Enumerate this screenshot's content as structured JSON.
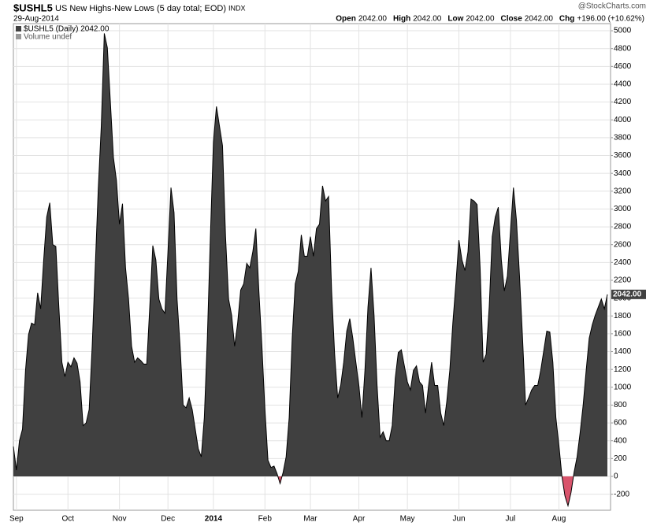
{
  "header": {
    "symbol": "$USHL5",
    "name": "US New Highs-New Lows (5 day total; EOD)",
    "exchange": "INDX",
    "date": "29-Aug-2014",
    "credit": "@StockCharts.com",
    "quote": [
      {
        "label": "Open",
        "value": "2042.00"
      },
      {
        "label": "High",
        "value": "2042.00"
      },
      {
        "label": "Low",
        "value": "2042.00"
      },
      {
        "label": "Close",
        "value": "2042.00"
      },
      {
        "label": "Chg",
        "value": "+196.00 (+10.62%)"
      }
    ],
    "legend_volume": "Volume undef"
  },
  "chart_data": {
    "type": "area",
    "categories": [
      null,
      "Sep",
      null,
      null,
      null,
      null,
      null,
      null,
      null,
      null,
      null,
      null,
      null,
      null,
      null,
      null,
      null,
      null,
      "Oct",
      null,
      null,
      null,
      null,
      null,
      null,
      null,
      null,
      null,
      null,
      null,
      null,
      null,
      null,
      null,
      null,
      "Nov",
      null,
      null,
      null,
      null,
      null,
      null,
      null,
      null,
      null,
      null,
      null,
      null,
      null,
      null,
      null,
      "Dec",
      null,
      null,
      null,
      null,
      null,
      null,
      null,
      null,
      null,
      null,
      null,
      null,
      null,
      null,
      "2014",
      null,
      null,
      null,
      null,
      null,
      null,
      null,
      null,
      null,
      null,
      null,
      null,
      null,
      null,
      null,
      null,
      "Feb",
      null,
      null,
      null,
      null,
      null,
      null,
      null,
      null,
      null,
      null,
      null,
      null,
      null,
      null,
      "Mar",
      null,
      null,
      null,
      null,
      null,
      null,
      null,
      null,
      null,
      null,
      null,
      null,
      null,
      null,
      null,
      "Apr",
      null,
      null,
      null,
      null,
      null,
      null,
      null,
      null,
      null,
      null,
      null,
      null,
      null,
      null,
      null,
      "May",
      null,
      null,
      null,
      null,
      null,
      null,
      null,
      null,
      null,
      null,
      null,
      null,
      null,
      null,
      null,
      null,
      "Jun",
      null,
      null,
      null,
      null,
      null,
      null,
      null,
      null,
      null,
      null,
      null,
      null,
      null,
      null,
      null,
      null,
      "Jul",
      null,
      null,
      null,
      null,
      null,
      null,
      null,
      null,
      null,
      null,
      null,
      null,
      null,
      null,
      null,
      "Aug",
      null,
      null,
      null,
      null,
      null,
      null,
      null,
      null,
      null,
      null,
      null,
      null,
      null,
      null,
      null,
      null
    ],
    "series": [
      {
        "name": "$USHL5 (Daily) 2042.00",
        "color": "#404040",
        "negative_color": "#d9546c",
        "last_label": "2042.00",
        "values": [
          335,
          70,
          400,
          530,
          1190,
          1590,
          1720,
          1700,
          2060,
          1880,
          2430,
          2910,
          3070,
          2600,
          2580,
          1900,
          1280,
          1120,
          1280,
          1230,
          1330,
          1270,
          1060,
          570,
          600,
          750,
          1460,
          2340,
          3220,
          3930,
          4970,
          4810,
          4200,
          3580,
          3320,
          2830,
          3060,
          2340,
          1990,
          1460,
          1280,
          1330,
          1300,
          1260,
          1260,
          1900,
          2590,
          2430,
          1990,
          1880,
          1830,
          2520,
          3240,
          2960,
          1990,
          1460,
          800,
          770,
          880,
          750,
          530,
          310,
          220,
          660,
          1550,
          2690,
          3750,
          4150,
          3930,
          3710,
          2690,
          1990,
          1810,
          1460,
          1720,
          2090,
          2160,
          2390,
          2340,
          2520,
          2780,
          2080,
          1460,
          750,
          180,
          100,
          115,
          30,
          -80,
          45,
          220,
          660,
          1550,
          2160,
          2300,
          2710,
          2470,
          2470,
          2690,
          2470,
          2780,
          2830,
          3260,
          3090,
          3140,
          2080,
          1370,
          880,
          1020,
          1280,
          1630,
          1770,
          1550,
          1280,
          1020,
          660,
          1190,
          1900,
          2340,
          1810,
          1020,
          440,
          500,
          400,
          400,
          570,
          1100,
          1390,
          1420,
          1240,
          1060,
          970,
          1190,
          1240,
          1060,
          1020,
          710,
          1020,
          1280,
          1020,
          1020,
          710,
          570,
          840,
          1190,
          1720,
          2160,
          2650,
          2430,
          2310,
          2520,
          3110,
          3090,
          3050,
          2340,
          1280,
          1370,
          1900,
          2690,
          2910,
          3020,
          2430,
          2080,
          2250,
          2740,
          3240,
          2870,
          2250,
          1550,
          800,
          880,
          970,
          1020,
          1020,
          1190,
          1410,
          1630,
          1620,
          1280,
          660,
          350,
          0,
          -220,
          -330,
          -180,
          45,
          220,
          490,
          800,
          1190,
          1550,
          1700,
          1810,
          1900,
          1990,
          1880,
          2042
        ]
      }
    ],
    "ylim": [
      -380,
      5080
    ],
    "yticks": [
      -200,
      0,
      200,
      400,
      600,
      800,
      1000,
      1200,
      1400,
      1600,
      1800,
      2000,
      2200,
      2400,
      2600,
      2800,
      3000,
      3200,
      3400,
      3600,
      3800,
      4000,
      4200,
      4400,
      4600,
      4800,
      5000
    ],
    "grid": true
  }
}
